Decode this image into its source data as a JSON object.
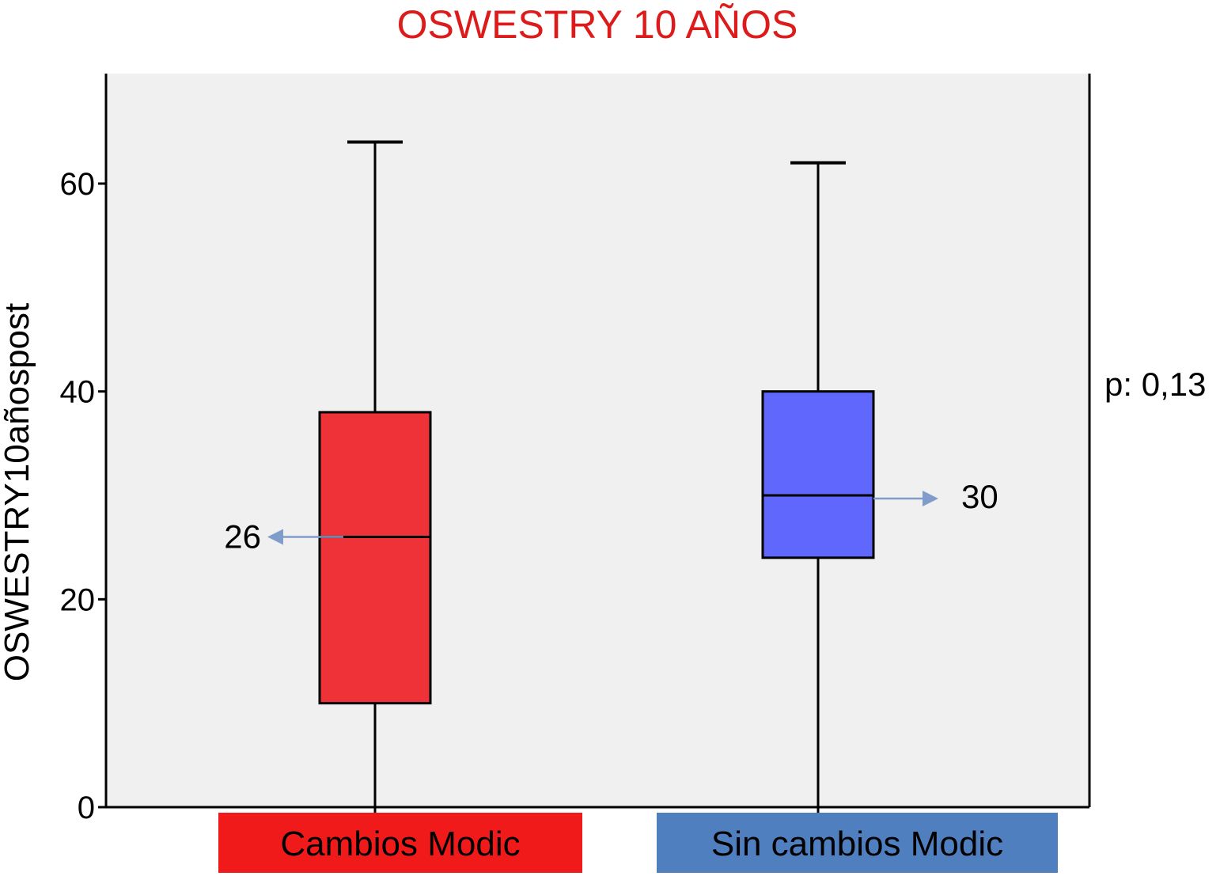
{
  "chart_data": {
    "type": "boxplot",
    "title": "OSWESTRY 10 AÑOS",
    "ylabel": "OSWESTRY10añospost",
    "xlabel": "",
    "ylim": [
      0,
      70
    ],
    "yticks": [
      0,
      20,
      40,
      60
    ],
    "grid": false,
    "categories": [
      "Cambios Modic",
      "Sin cambios Modic"
    ],
    "boxes": [
      {
        "category": "Cambios Modic",
        "min": 0,
        "q1": 10,
        "median": 26,
        "q3": 38,
        "max": 64,
        "median_label": "26"
      },
      {
        "category": "Sin cambios Modic",
        "min": 0,
        "q1": 24,
        "median": 30,
        "q3": 40,
        "max": 62,
        "median_label": "30"
      }
    ],
    "annotations": [
      "p: 0,13"
    ]
  },
  "colors": {
    "title": "#dd1b1b",
    "plot_bg": "#f0f0f0",
    "box_1": "#ee3238",
    "box_2": "#5f67fc",
    "label_bg_1": "#f01a1a",
    "label_bg_2": "#4f7fbf",
    "arrow": "#7f9ccb",
    "axis": "#000000"
  }
}
